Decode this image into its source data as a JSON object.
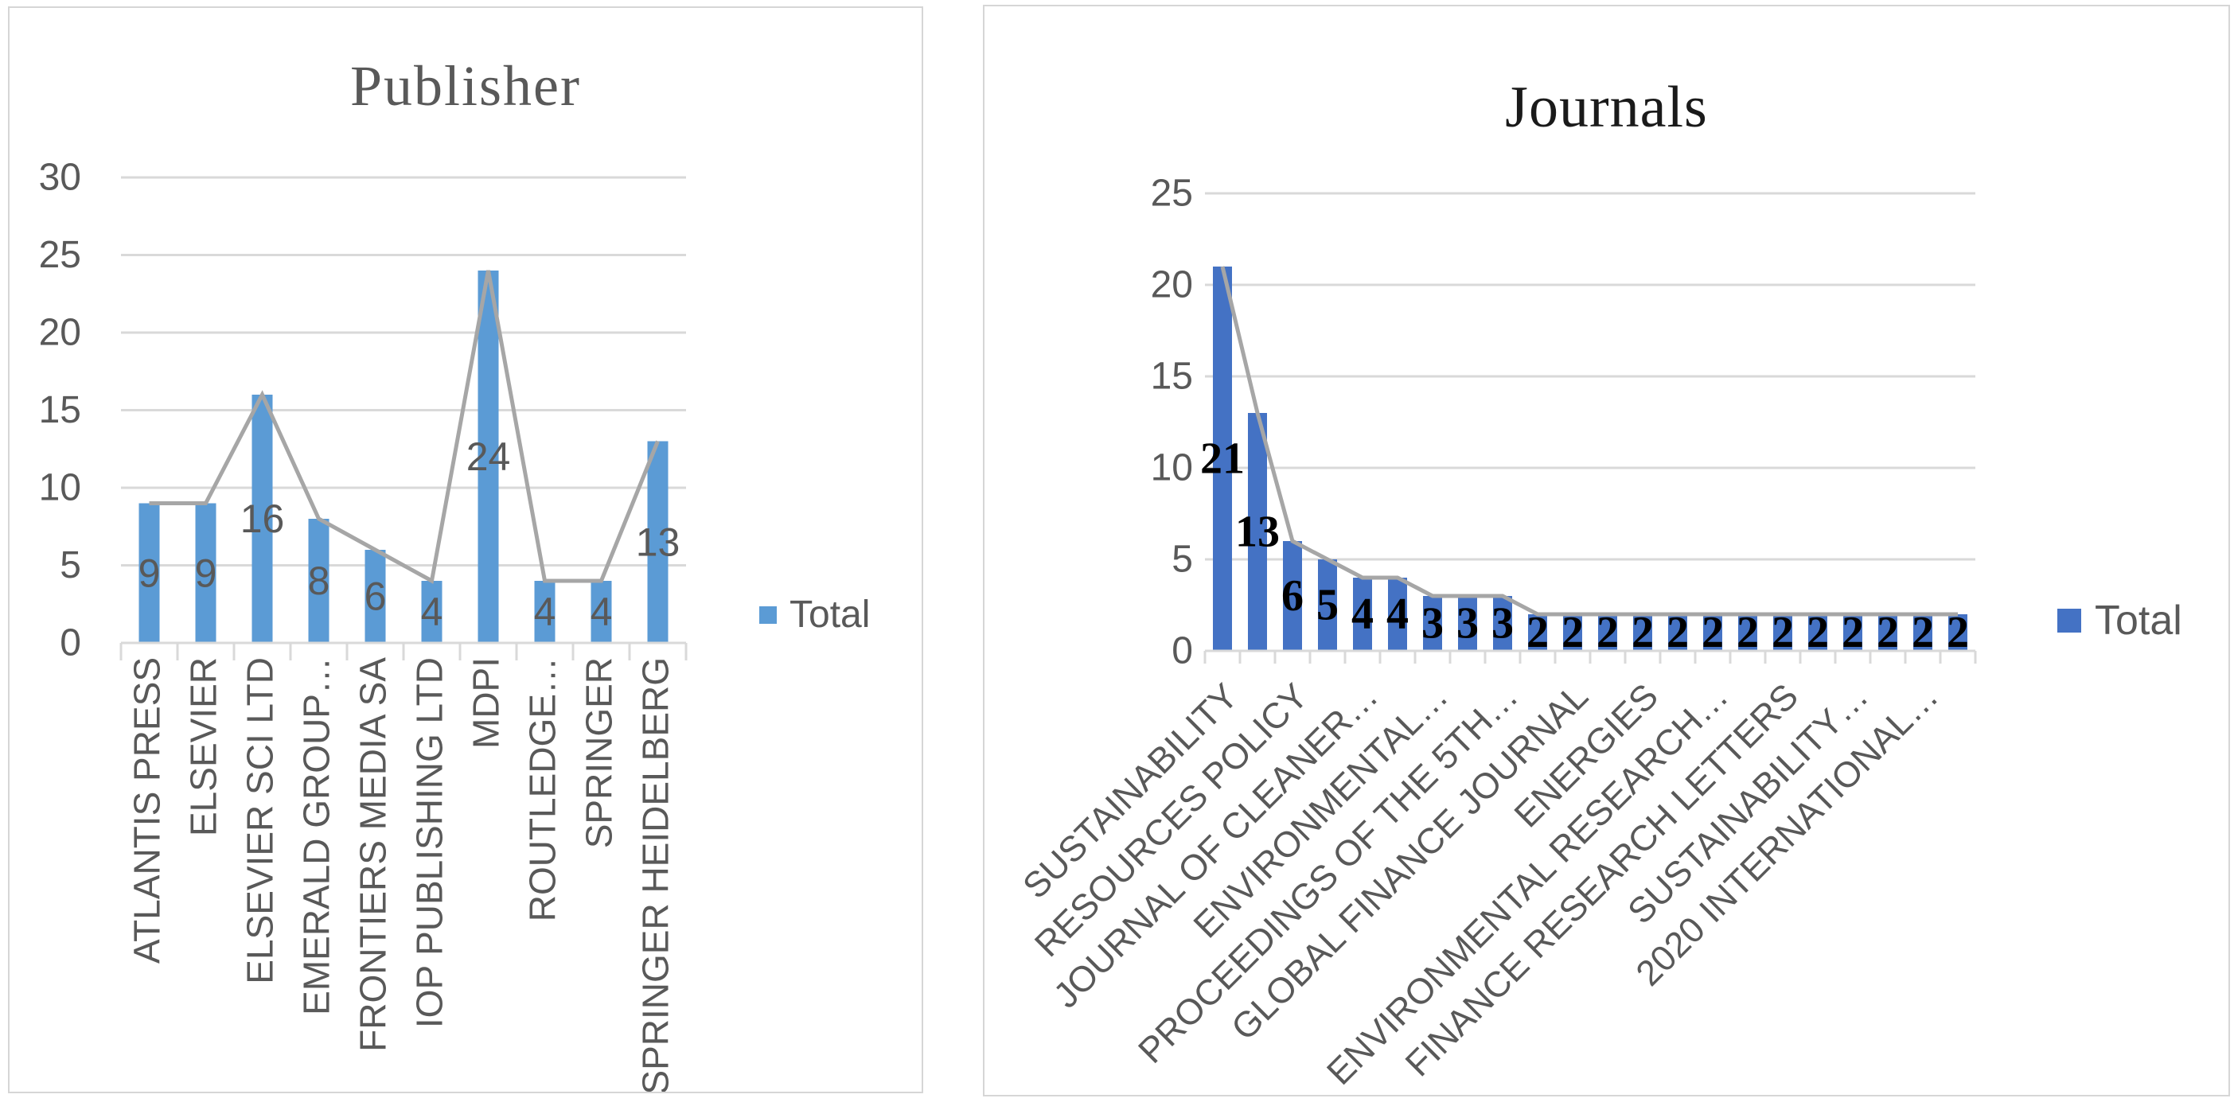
{
  "page": {
    "background": "#ffffff"
  },
  "chart_data": [
    {
      "type": "bar",
      "title": "Publisher",
      "legend": {
        "label": "Total",
        "swatch_color": "#5b9bd5",
        "position": "right"
      },
      "categories": [
        "ATLANTIS PRESS",
        "ELSEVIER",
        "ELSEVIER SCI LTD",
        "EMERALD GROUP…",
        "FRONTIERS MEDIA SA",
        "IOP PUBLISHING LTD",
        "MDPI",
        "ROUTLEDGE…",
        "SPRINGER",
        "SPRINGER HEIDELBERG"
      ],
      "values": [
        9,
        9,
        16,
        8,
        6,
        4,
        24,
        4,
        4,
        13
      ],
      "data_labels": [
        "9",
        "9",
        "16",
        "8",
        "6",
        "4",
        "24",
        "4",
        "4",
        "13"
      ],
      "line_values": [
        9,
        9,
        16,
        8,
        6,
        4,
        24,
        4,
        4,
        13
      ],
      "y_ticks": [
        0,
        5,
        10,
        15,
        20,
        25,
        30
      ],
      "ylim": [
        0,
        30
      ],
      "grid": true,
      "xlabel": "",
      "ylabel": "",
      "colors": {
        "bar": "#5b9bd5",
        "line": "#a6a6a6",
        "grid": "#d9d9d9",
        "axis": "#d9d9d9",
        "axis_text": "#595959",
        "data_label": "#595959",
        "title": "#595959",
        "border": "#d6d6d6"
      }
    },
    {
      "type": "bar",
      "title": "Journals",
      "legend": {
        "label": "Total",
        "swatch_color": "#4472c4",
        "position": "right"
      },
      "categories": [
        "SUSTAINABILITY",
        "",
        "RESOURCES POLICY",
        "",
        "JOURNAL OF CLEANER…",
        "",
        "ENVIRONMENTAL…",
        "",
        "PROCEEDINGS OF THE 5TH…",
        "",
        "GLOBAL FINANCE JOURNAL",
        "",
        "ENERGIES",
        "",
        "ENVIRONMENTAL RESEARCH…",
        "",
        "FINANCE RESEARCH LETTERS",
        "",
        "SUSTAINABILITY…",
        "",
        "2020 INTERNATIONAL…",
        ""
      ],
      "x_label_interval": 2,
      "values": [
        21,
        13,
        6,
        5,
        4,
        4,
        3,
        3,
        3,
        2,
        2,
        2,
        2,
        2,
        2,
        2,
        2,
        2,
        2,
        2,
        2,
        2
      ],
      "data_labels": [
        "21",
        "13",
        "6",
        "5",
        "4",
        "4",
        "3",
        "3",
        "3",
        "2",
        "2",
        "2",
        "2",
        "2",
        "2",
        "2",
        "2",
        "2",
        "2",
        "2",
        "2",
        "2"
      ],
      "line_values": [
        21,
        13,
        6,
        5,
        4,
        4,
        3,
        3,
        3,
        2,
        2,
        2,
        2,
        2,
        2,
        2,
        2,
        2,
        2,
        2,
        2,
        2
      ],
      "y_ticks": [
        0,
        5,
        10,
        15,
        20,
        25
      ],
      "ylim": [
        0,
        25
      ],
      "grid": true,
      "xlabel": "",
      "ylabel": "",
      "colors": {
        "bar": "#4472c4",
        "line": "#a6a6a6",
        "grid": "#d9d9d9",
        "axis": "#d9d9d9",
        "axis_text": "#595959",
        "data_label": "#000000",
        "title": "#1a1a1a",
        "border": "#d6d6d6"
      }
    }
  ]
}
